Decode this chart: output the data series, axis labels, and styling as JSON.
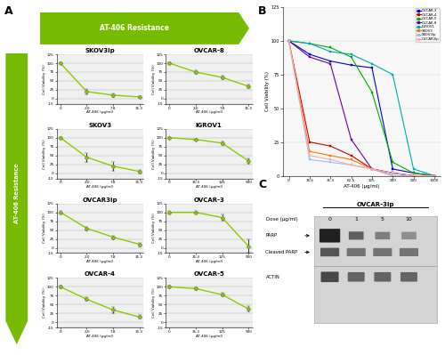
{
  "small_plots": [
    {
      "title": "SKOV3Ip",
      "x_labels": [
        "0",
        "2.0",
        "7.8",
        "31.3"
      ],
      "y": [
        100,
        20,
        10,
        5
      ],
      "yerr": [
        3,
        8,
        5,
        3
      ],
      "xlabel": "AT-406 (µg/ml)",
      "ylabel": "Cell Viability (%)",
      "ylim": [
        -15,
        125
      ],
      "yticks": [
        -15,
        0,
        25,
        50,
        75,
        100,
        125
      ],
      "color": "#88cc00"
    },
    {
      "title": "OVCAR-8",
      "x_labels": [
        "0",
        "2.0",
        "7.8",
        "31.3"
      ],
      "y": [
        100,
        75,
        60,
        35
      ],
      "yerr": [
        3,
        5,
        5,
        5
      ],
      "xlabel": "AT-406 (µg/ml)",
      "ylabel": "Cell Viability (%)",
      "ylim": [
        -15,
        125
      ],
      "yticks": [
        -15,
        0,
        25,
        50,
        75,
        100,
        125
      ],
      "color": "#88cc00"
    },
    {
      "title": "SKOV3",
      "x_labels": [
        "0",
        "2.0",
        "7.8",
        "31.3"
      ],
      "y": [
        100,
        45,
        20,
        5
      ],
      "yerr": [
        3,
        12,
        12,
        5
      ],
      "xlabel": "AT-406 (µg/ml)",
      "ylabel": "Cell Viability (%)",
      "ylim": [
        -15,
        125
      ],
      "yticks": [
        -15,
        0,
        25,
        50,
        75,
        100,
        125
      ],
      "color": "#88cc00"
    },
    {
      "title": "IGROV1",
      "x_labels": [
        "0",
        "31.3",
        "125",
        "500"
      ],
      "y": [
        100,
        95,
        85,
        35
      ],
      "yerr": [
        3,
        3,
        5,
        8
      ],
      "xlabel": "AT-406 (µg/ml)",
      "ylabel": "Cell Viability (%)",
      "ylim": [
        -15,
        125
      ],
      "yticks": [
        -15,
        0,
        25,
        50,
        75,
        100,
        125
      ],
      "color": "#88cc00"
    },
    {
      "title": "OVCAR3ip",
      "x_labels": [
        "0",
        "2.0",
        "7.8",
        "31.3"
      ],
      "y": [
        100,
        55,
        30,
        10
      ],
      "yerr": [
        3,
        5,
        5,
        5
      ],
      "xlabel": "AT-406 (µg/ml)",
      "ylabel": "Cell Viability (%)",
      "ylim": [
        -15,
        125
      ],
      "yticks": [
        -15,
        0,
        25,
        50,
        75,
        100,
        125
      ],
      "color": "#88cc00"
    },
    {
      "title": "OVCAR-3",
      "x_labels": [
        "0",
        "31.3",
        "125",
        "500"
      ],
      "y": [
        100,
        100,
        85,
        5
      ],
      "yerr": [
        3,
        3,
        8,
        20
      ],
      "xlabel": "AT-406 (µg/ml)",
      "ylabel": "Cell Viability (%)",
      "ylim": [
        -15,
        125
      ],
      "yticks": [
        -15,
        0,
        25,
        50,
        75,
        100,
        125
      ],
      "color": "#88cc00"
    },
    {
      "title": "OVCAR-4",
      "x_labels": [
        "0",
        "2.0",
        "7.8",
        "31.3"
      ],
      "y": [
        100,
        65,
        35,
        15
      ],
      "yerr": [
        3,
        5,
        8,
        5
      ],
      "xlabel": "AT-406 (µg/ml)",
      "ylabel": "Cell Viability (%)",
      "ylim": [
        -15,
        125
      ],
      "yticks": [
        -15,
        0,
        25,
        50,
        75,
        100,
        125
      ],
      "color": "#88cc00"
    },
    {
      "title": "OVCAR-5",
      "x_labels": [
        "0",
        "31.3",
        "125",
        "500"
      ],
      "y": [
        100,
        95,
        78,
        38
      ],
      "yerr": [
        3,
        3,
        5,
        8
      ],
      "xlabel": "AT-406 (µg/ml)",
      "ylabel": "Cell Viability (%)",
      "ylim": [
        -15,
        125
      ],
      "yticks": [
        -15,
        0,
        25,
        50,
        75,
        100,
        125
      ],
      "color": "#88cc00"
    }
  ],
  "panel_B": {
    "xlabel": "AT-406 (µg/ml)",
    "ylabel": "Cell Viability (%)",
    "ylim": [
      0,
      125
    ],
    "yticks": [
      0,
      25,
      50,
      75,
      100,
      125
    ],
    "xtick_labels": [
      "0",
      "15.6",
      "31.3",
      "62.5",
      "125",
      "250",
      "500",
      "1000"
    ],
    "lines": [
      {
        "label": "OVCAR-3",
        "color": "#0000cc",
        "y": [
          100,
          90,
          85,
          82,
          80,
          5,
          2,
          0
        ]
      },
      {
        "label": "OVCAR-4",
        "color": "#cc0000",
        "y": [
          100,
          25,
          22,
          15,
          5,
          2,
          0,
          0
        ]
      },
      {
        "label": "OVCAR-5",
        "color": "#00aa00",
        "y": [
          100,
          98,
          95,
          88,
          62,
          10,
          2,
          0
        ]
      },
      {
        "label": "OVCAR-8",
        "color": "#660099",
        "y": [
          100,
          88,
          83,
          27,
          5,
          2,
          0,
          0
        ]
      },
      {
        "label": "IGROV1",
        "color": "#00aaaa",
        "y": [
          100,
          98,
          92,
          90,
          83,
          75,
          5,
          0
        ]
      },
      {
        "label": "SKOV3",
        "color": "#ff7700",
        "y": [
          100,
          18,
          15,
          12,
          5,
          0,
          0,
          0
        ]
      },
      {
        "label": "SKOV3Ip",
        "color": "#99bbff",
        "y": [
          100,
          12,
          10,
          8,
          5,
          0,
          0,
          0
        ]
      },
      {
        "label": "OVCAR3Ip",
        "color": "#ffaaaa",
        "y": [
          100,
          15,
          12,
          8,
          5,
          2,
          0,
          0
        ]
      }
    ]
  },
  "panel_C": {
    "title": "OVCAR-3ip",
    "doses": [
      "0",
      "1",
      "5",
      "10"
    ],
    "dose_label": "Dose (µg/ml)",
    "row_labels": [
      "PARP",
      "Cleaved PARP",
      "ACTIN"
    ]
  },
  "arrow_green": "#77bb00",
  "arrow_green_dark": "#559900",
  "bg_color": "#ffffff"
}
